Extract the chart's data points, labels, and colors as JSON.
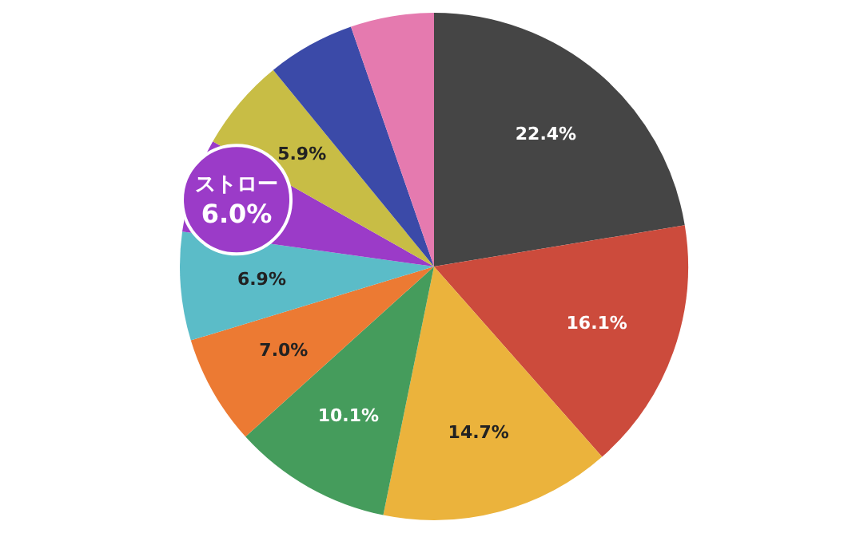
{
  "chart_data": {
    "type": "pie",
    "categories": [
      null,
      null,
      null,
      null,
      null,
      null,
      "ストロー",
      null,
      null,
      null
    ],
    "values": [
      22.4,
      16.1,
      14.7,
      10.1,
      7.0,
      6.9,
      6.0,
      5.9,
      5.6,
      5.3
    ],
    "colors": [
      "#454545",
      "#cc4b3c",
      "#ebb33c",
      "#459c5c",
      "#ec7a33",
      "#5bbcc8",
      "#9b3bc8",
      "#c8bd45",
      "#3b4aa8",
      "#e57aaf"
    ],
    "value_labels": [
      "22.4%",
      "16.1%",
      "14.7%",
      "10.1%",
      "7.0%",
      "6.9%",
      "6.0%",
      "5.9%",
      null,
      null
    ],
    "legend": false
  }
}
